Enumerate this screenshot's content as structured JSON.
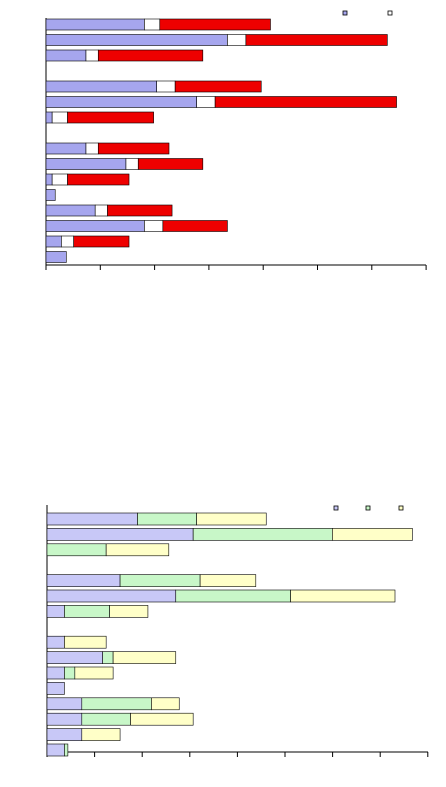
{
  "chart_data": [
    {
      "type": "bar",
      "orientation": "horizontal",
      "stacked": true,
      "title": "",
      "xlabel": "",
      "ylabel": "",
      "legend": "top-right",
      "grid": false,
      "rows": [
        {
          "values": [
            16,
            2.5,
            18
          ]
        },
        {
          "values": [
            29.5,
            3,
            23
          ]
        },
        {
          "values": [
            6.5,
            2,
            17
          ]
        },
        null,
        {
          "values": [
            18,
            3,
            14
          ]
        },
        {
          "values": [
            24.5,
            3,
            29.5
          ]
        },
        {
          "values": [
            1,
            2.5,
            14
          ]
        },
        null,
        {
          "values": [
            6.5,
            2,
            11.5
          ]
        },
        {
          "values": [
            13,
            2,
            10.5
          ]
        },
        {
          "values": [
            1,
            2.5,
            10
          ]
        },
        {
          "values": [
            1.5
          ]
        },
        {
          "values": [
            8,
            2,
            10.5
          ]
        },
        {
          "values": [
            16,
            3,
            10.5
          ]
        },
        {
          "values": [
            2.5,
            2,
            9
          ]
        },
        {
          "values": [
            3.3
          ]
        }
      ],
      "series": [
        {
          "color": "#a6a6ee"
        },
        {
          "color": "#ffffff"
        },
        {
          "color": "#ee0000"
        }
      ]
    },
    {
      "type": "bar",
      "orientation": "horizontal",
      "stacked": true,
      "title": "",
      "xlabel": "",
      "ylabel": "",
      "legend": "top-right",
      "grid": false,
      "rows": [
        {
          "values": [
            26,
            17,
            20
          ]
        },
        {
          "values": [
            42,
            40,
            23
          ]
        },
        {
          "values": [
            0,
            17,
            18
          ]
        },
        null,
        {
          "values": [
            21,
            23,
            16
          ]
        },
        {
          "values": [
            37,
            33,
            30
          ]
        },
        {
          "values": [
            5,
            13,
            11
          ]
        },
        null,
        {
          "values": [
            5,
            0,
            12
          ]
        },
        {
          "values": [
            16,
            3,
            18
          ]
        },
        {
          "values": [
            5,
            3,
            11
          ]
        },
        {
          "values": [
            5
          ]
        },
        {
          "values": [
            10,
            20,
            8
          ]
        },
        {
          "values": [
            10,
            14,
            18
          ]
        },
        {
          "values": [
            10,
            0,
            11
          ]
        },
        {
          "values": [
            5,
            1
          ]
        }
      ],
      "series": [
        {
          "color": "#c8c8f7"
        },
        {
          "color": "#c8f7c8"
        },
        {
          "color": "#ffffc8"
        }
      ]
    }
  ]
}
